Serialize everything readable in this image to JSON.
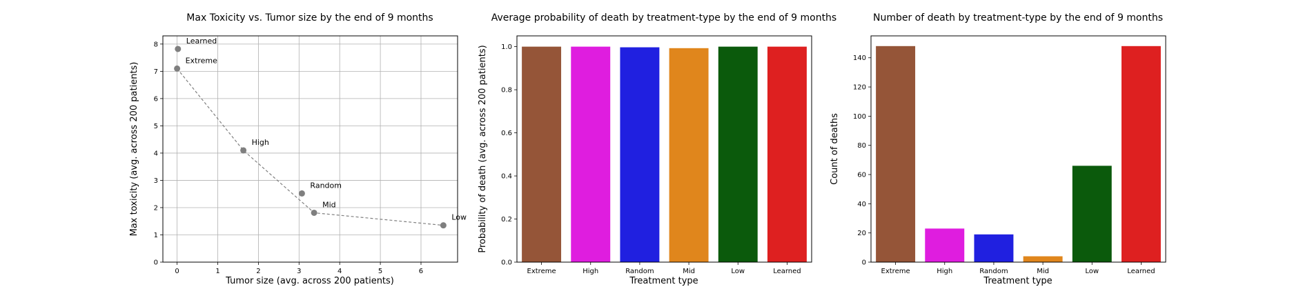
{
  "chart_data": [
    {
      "type": "scatter",
      "title": "Max Toxicity vs. Tumor size by the end of 9 months",
      "xlabel": "Tumor size (avg. across 200 patients)",
      "ylabel": "Max toxicity (avg. across 200 patients)",
      "xlim": [
        -0.35,
        6.9
      ],
      "ylim": [
        0,
        8.3
      ],
      "xticks": [
        "0",
        "1",
        "2",
        "3",
        "4",
        "5",
        "6"
      ],
      "yticks": [
        "0",
        "1",
        "2",
        "3",
        "4",
        "5",
        "6",
        "7",
        "8"
      ],
      "grid": true,
      "points": [
        {
          "label": "Learned",
          "x": 0.02,
          "y": 7.82
        },
        {
          "label": "Extreme",
          "x": 0.0,
          "y": 7.1
        },
        {
          "label": "High",
          "x": 1.63,
          "y": 4.1
        },
        {
          "label": "Random",
          "x": 3.07,
          "y": 2.52
        },
        {
          "label": "Mid",
          "x": 3.37,
          "y": 1.81
        },
        {
          "label": "Low",
          "x": 6.55,
          "y": 1.35
        }
      ],
      "frontier": [
        "Extreme",
        "High",
        "Mid",
        "Low"
      ],
      "marker_color": "#7f7f7f"
    },
    {
      "type": "bar",
      "title": "Average probability of death by treatment-type by the end of 9 months",
      "xlabel": "Treatment type",
      "ylabel": "Probability of death (avg. across 200 patients)",
      "categories": [
        "Extreme",
        "High",
        "Random",
        "Mid",
        "Low",
        "Learned"
      ],
      "values": [
        1.0,
        1.0,
        0.997,
        0.993,
        1.0,
        1.0
      ],
      "colors": [
        "#955538",
        "#df1ddf",
        "#2020e0",
        "#e0861c",
        "#0b5a0c",
        "#de2020"
      ],
      "ylim": [
        0,
        1.05
      ],
      "yticks": [
        "0.0",
        "0.2",
        "0.4",
        "0.6",
        "0.8",
        "1.0"
      ],
      "grid": false
    },
    {
      "type": "bar",
      "title": "Number of death by treatment-type by the end of 9 months",
      "xlabel": "Treatment type",
      "ylabel": "Count of deaths",
      "categories": [
        "Extreme",
        "High",
        "Random",
        "Mid",
        "Low",
        "Learned"
      ],
      "values": [
        148,
        23,
        19,
        4,
        66,
        148
      ],
      "colors": [
        "#955538",
        "#df1ddf",
        "#2020e0",
        "#e0861c",
        "#0b5a0c",
        "#de2020"
      ],
      "ylim": [
        0,
        155
      ],
      "yticks": [
        "0",
        "20",
        "40",
        "60",
        "80",
        "100",
        "120",
        "140"
      ],
      "grid": false
    }
  ]
}
